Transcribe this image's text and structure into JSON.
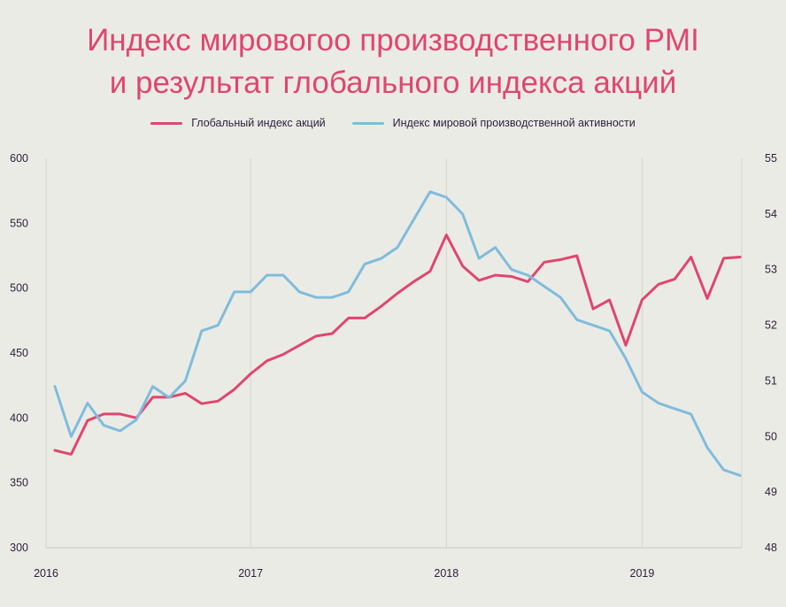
{
  "title_line1": "Индекс мировогоо производственного PMI",
  "title_line2": "и результат глобального индекса акций",
  "legend": [
    {
      "label": "Глобальный индекс акций",
      "color": "#e0466e"
    },
    {
      "label": "Индекс мировой производственной активности",
      "color": "#7fbcdc"
    }
  ],
  "chart_data": {
    "type": "line",
    "x": [
      "2016-01",
      "2016-02",
      "2016-03",
      "2016-04",
      "2016-05",
      "2016-06",
      "2016-07",
      "2016-08",
      "2016-09",
      "2016-10",
      "2016-11",
      "2016-12",
      "2017-01",
      "2017-02",
      "2017-03",
      "2017-04",
      "2017-05",
      "2017-06",
      "2017-07",
      "2017-08",
      "2017-09",
      "2017-10",
      "2017-11",
      "2017-12",
      "2018-01",
      "2018-02",
      "2018-03",
      "2018-04",
      "2018-05",
      "2018-06",
      "2018-07",
      "2018-08",
      "2018-09",
      "2018-10",
      "2018-11",
      "2018-12",
      "2019-01",
      "2019-02",
      "2019-03",
      "2019-04",
      "2019-05",
      "2019-06",
      "2019-07"
    ],
    "x_ticks": [
      "2016",
      "2017",
      "2018",
      "2019"
    ],
    "series": [
      {
        "name": "Глобальный индекс акций",
        "axis": "left",
        "color": "#e0466e",
        "values": [
          375,
          372,
          398,
          403,
          403,
          400,
          416,
          416,
          419,
          411,
          413,
          422,
          434,
          444,
          449,
          456,
          463,
          465,
          477,
          477,
          486,
          496,
          505,
          513,
          541,
          517,
          506,
          510,
          509,
          505,
          520,
          522,
          525,
          484,
          491,
          456,
          491,
          503,
          507,
          524,
          492,
          523,
          524
        ]
      },
      {
        "name": "Индекс мировой производственной активности",
        "axis": "right",
        "color": "#7fbcdc",
        "values": [
          50.9,
          50.0,
          50.6,
          50.2,
          50.1,
          50.3,
          50.9,
          50.7,
          51.0,
          51.9,
          52.0,
          52.6,
          52.6,
          52.9,
          52.9,
          52.6,
          52.5,
          52.5,
          52.6,
          53.1,
          53.2,
          53.4,
          53.9,
          54.4,
          54.3,
          54.0,
          53.2,
          53.4,
          53.0,
          52.9,
          52.7,
          52.5,
          52.1,
          52.0,
          51.9,
          51.4,
          50.8,
          50.6,
          50.5,
          50.4,
          49.8,
          49.4,
          49.3
        ]
      }
    ],
    "y_left": {
      "min": 300,
      "max": 600,
      "ticks": [
        300,
        350,
        400,
        450,
        500,
        550,
        600
      ]
    },
    "y_right": {
      "min": 48,
      "max": 55,
      "ticks": [
        48,
        49,
        50,
        51,
        52,
        53,
        54,
        55
      ]
    },
    "grid": "vertical"
  }
}
